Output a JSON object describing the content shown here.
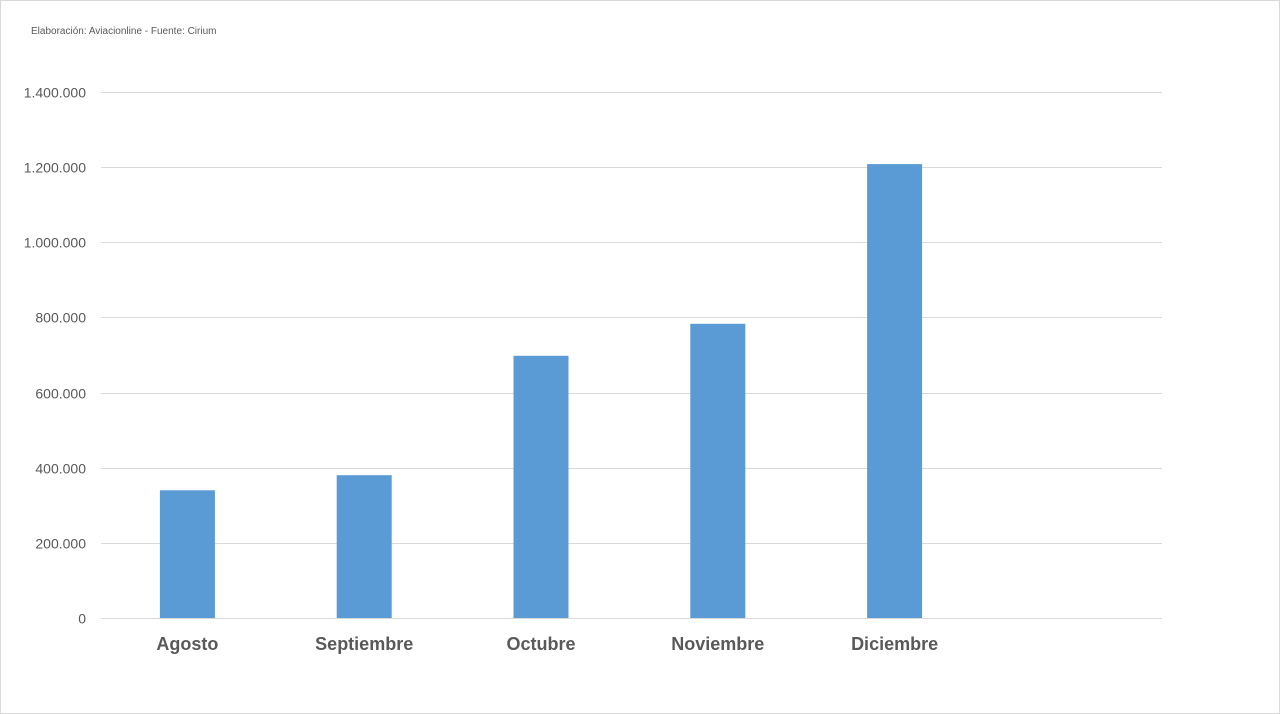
{
  "source_note": "Elaboración: Aviacionline - Fuente: Cirium",
  "chart_data": {
    "type": "bar",
    "title": "",
    "xlabel": "",
    "ylabel": "",
    "categories": [
      "Agosto",
      "Septiembre",
      "Octubre",
      "Noviembre",
      "Diciembre"
    ],
    "values": [
      340000,
      380000,
      698000,
      783000,
      1208000
    ],
    "ylim": [
      0,
      1400000
    ],
    "yticks": [
      0,
      200000,
      400000,
      600000,
      800000,
      1000000,
      1200000,
      1400000
    ],
    "ytick_labels": [
      "0",
      "200.000",
      "400.000",
      "600.000",
      "800.000",
      "1.000.000",
      "1.200.000",
      "1.400.000"
    ],
    "grid": true,
    "legend": "none",
    "bar_color": "#5b9bd5",
    "grid_color": "#d9d9d9",
    "text_color": "#595959"
  }
}
